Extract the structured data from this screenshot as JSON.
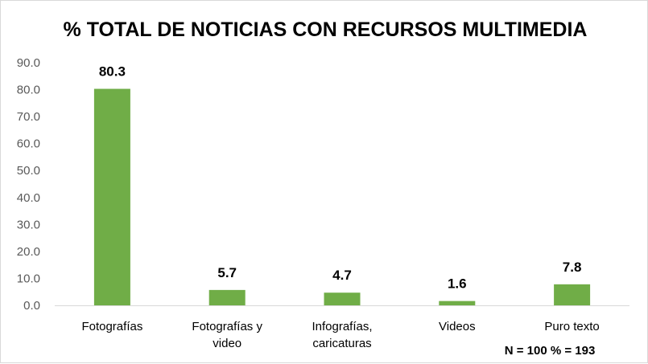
{
  "chart_data": {
    "type": "bar",
    "title": "% TOTAL DE NOTICIAS CON RECURSOS MULTIMEDIA",
    "categories": [
      [
        "Fotografías"
      ],
      [
        "Fotografías y",
        "video"
      ],
      [
        "Infografías,",
        "caricaturas"
      ],
      [
        "Videos"
      ],
      [
        "Puro texto"
      ]
    ],
    "values": [
      80.3,
      5.7,
      4.7,
      1.6,
      7.8
    ],
    "data_labels": [
      "80.3",
      "5.7",
      "4.7",
      "1.6",
      "7.8"
    ],
    "y_ticks": [
      "0.0",
      "10.0",
      "20.0",
      "30.0",
      "40.0",
      "50.0",
      "60.0",
      "70.0",
      "80.0",
      "90.0"
    ],
    "ylim": [
      0,
      90
    ],
    "grid": false,
    "legend": "none",
    "bar_color": "#70ad47",
    "note": "N = 100 % = 193"
  }
}
